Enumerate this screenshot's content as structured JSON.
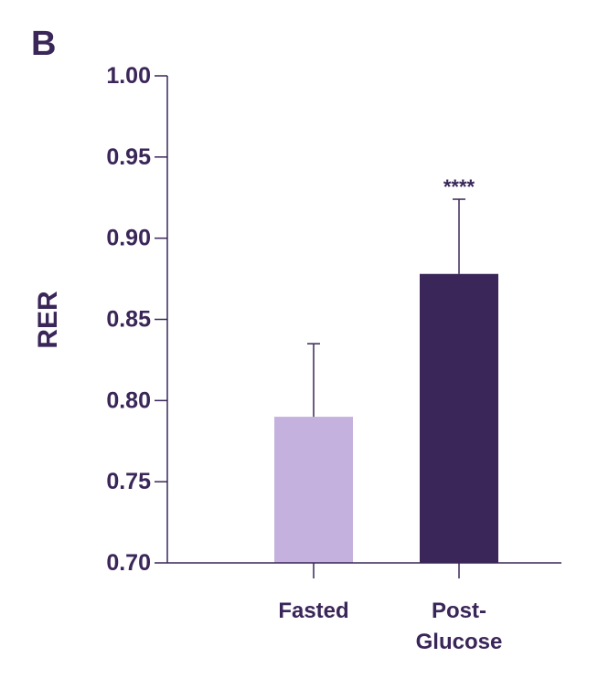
{
  "panel_label": "B",
  "colors": {
    "text": "#3a2658",
    "axis": "#3a2658",
    "fasted_bar": "#c5b1dd",
    "glucose_bar": "#3a2658"
  },
  "chart_data": {
    "type": "bar",
    "title": "",
    "xlabel": "",
    "ylabel": "RER",
    "ylim": [
      0.7,
      1.0
    ],
    "yticks": [
      "0.70",
      "0.75",
      "0.80",
      "0.85",
      "0.90",
      "0.95",
      "1.00"
    ],
    "grid": false,
    "categories": [
      {
        "lines": [
          "Fasted"
        ]
      },
      {
        "lines": [
          "Post-",
          "Glucose"
        ]
      }
    ],
    "values": [
      0.79,
      0.878
    ],
    "error_upper": [
      0.835,
      0.924
    ],
    "bar_colors": [
      "#c5b1dd",
      "#3a2658"
    ],
    "annotations": [
      "",
      "****"
    ]
  }
}
